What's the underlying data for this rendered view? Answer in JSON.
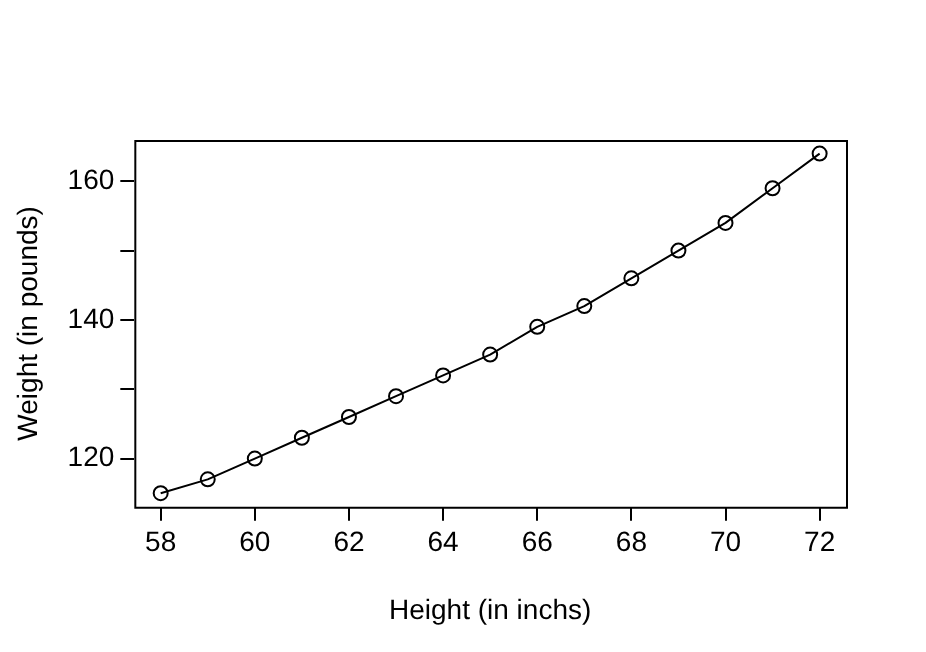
{
  "chart_data": {
    "type": "line",
    "xlabel": "Height (in inchs)",
    "ylabel": "Weight (in pounds)",
    "x": [
      58,
      59,
      60,
      61,
      62,
      63,
      64,
      65,
      66,
      67,
      68,
      69,
      70,
      71,
      72
    ],
    "series": [
      {
        "color": "#000000",
        "values": [
          115,
          117,
          120,
          123,
          126,
          129,
          132,
          135,
          139,
          142,
          146,
          150,
          154,
          159,
          164
        ]
      }
    ],
    "xlim": [
      57.44,
      72.56
    ],
    "ylim": [
      113.04,
      165.96
    ],
    "xticks": [
      58,
      60,
      62,
      64,
      66,
      68,
      70,
      72
    ],
    "yticks": [
      120,
      {
        "value": 130,
        "label": null
      },
      140,
      {
        "value": 150,
        "label": null
      },
      160
    ],
    "marker": "circle",
    "line_style": "solid",
    "grid": false,
    "legend": false
  }
}
